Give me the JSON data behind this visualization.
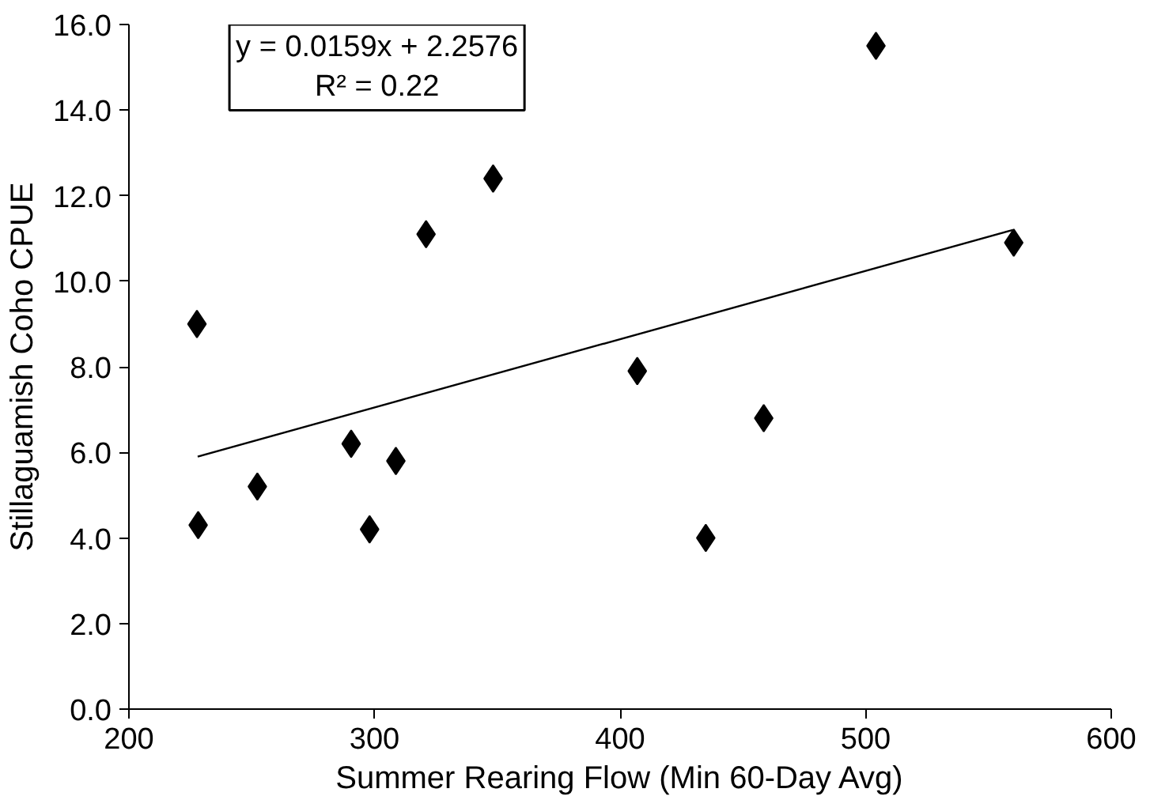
{
  "chart_data": {
    "type": "scatter",
    "xlabel": "Summer Rearing Flow (Min 60-Day Avg)",
    "ylabel": "Stillaguamish Coho CPUE",
    "annotations": [
      "y = 0.0159x + 2.2576",
      "R² = 0.22"
    ],
    "xlim": [
      200,
      600
    ],
    "xticks": [
      200,
      300,
      400,
      500,
      600
    ],
    "ylim": [
      0,
      16
    ],
    "yticks": [
      {
        "value": 0,
        "label": "0.0"
      },
      {
        "value": 2,
        "label": "2.0"
      },
      {
        "value": 4,
        "label": "4.0"
      },
      {
        "value": 6,
        "label": "6.0"
      },
      {
        "value": 8,
        "label": "8.0"
      },
      {
        "value": 10,
        "label": "10.0"
      },
      {
        "value": 12,
        "label": "12.0"
      },
      {
        "value": 14,
        "label": "14.0"
      },
      {
        "value": 16,
        "label": "16.0"
      }
    ],
    "grid": false,
    "series": [
      {
        "marker": "diamond",
        "color": "#000000",
        "x": [
          227.7,
          228.2,
          252.3,
          290.5,
          298,
          308.7,
          321,
          348.3,
          407,
          434.9,
          458.5,
          504.2,
          560.3
        ],
        "values": [
          9.0,
          4.3,
          5.2,
          6.2,
          4.2,
          5.8,
          11.1,
          12.4,
          7.9,
          4.0,
          6.8,
          15.5,
          10.9
        ]
      },
      {
        "type": "line",
        "color": "#000000",
        "line_style": "solid",
        "x": [
          228,
          560
        ],
        "values": [
          5.9,
          11.2
        ]
      }
    ]
  }
}
